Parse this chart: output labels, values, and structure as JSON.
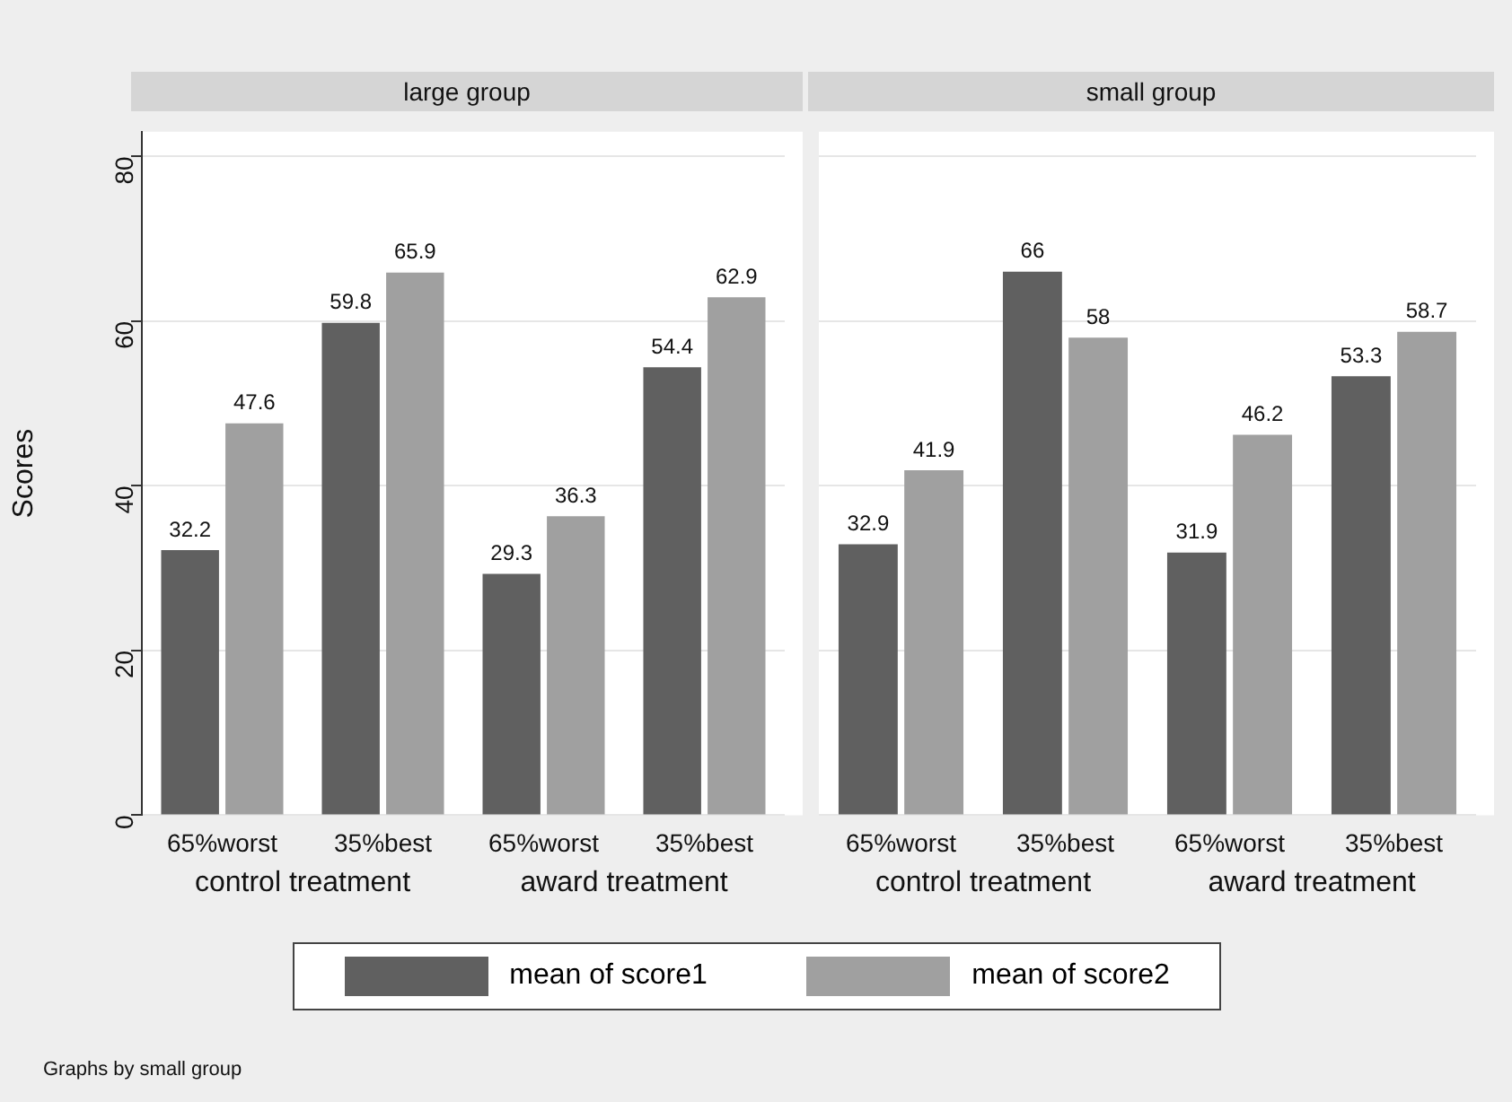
{
  "chart_data": [
    {
      "type": "bar",
      "title": "large group",
      "ylabel": "Scores",
      "categories": [
        "65%worst",
        "35%best",
        "65%worst",
        "35%best"
      ],
      "series": [
        {
          "name": "mean of score1",
          "color": "#606060",
          "values": [
            32.2,
            59.8,
            29.3,
            54.4
          ]
        },
        {
          "name": "mean of score2",
          "color": "#a0a0a0",
          "values": [
            47.6,
            65.9,
            36.3,
            62.9
          ]
        }
      ],
      "ylim": [
        0,
        83
      ],
      "yticks": [
        0,
        20,
        40,
        60,
        80
      ],
      "grid": "y",
      "data_labels": true,
      "legend": "bottom",
      "annotations": [
        "control treatment",
        "award treatment",
        "Graphs by small group"
      ]
    },
    {
      "type": "bar",
      "title": "small group",
      "categories": [
        "65%worst",
        "35%best",
        "65%worst",
        "35%best"
      ],
      "series": [
        {
          "color": "#606060",
          "values": [
            32.9,
            66,
            31.9,
            53.3
          ]
        },
        {
          "color": "#a0a0a0",
          "values": [
            41.9,
            58,
            46.2,
            58.7
          ]
        }
      ],
      "ylim": [
        0,
        83
      ],
      "yticks": [
        0,
        20,
        40,
        60,
        80
      ],
      "grid": "y",
      "data_labels": true,
      "tick_labels": "x",
      "annotations": [
        "control treatment",
        "award treatment"
      ]
    }
  ]
}
